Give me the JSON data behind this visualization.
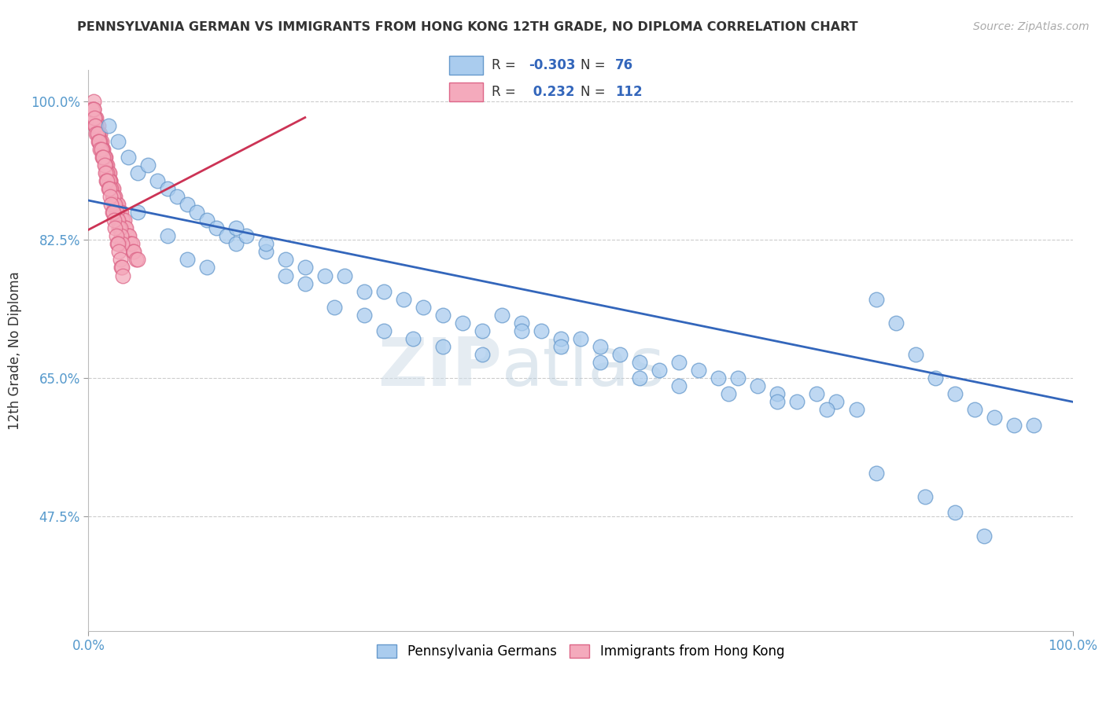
{
  "title": "PENNSYLVANIA GERMAN VS IMMIGRANTS FROM HONG KONG 12TH GRADE, NO DIPLOMA CORRELATION CHART",
  "source": "Source: ZipAtlas.com",
  "ylabel": "12th Grade, No Diploma",
  "blue_label": "Pennsylvania Germans",
  "pink_label": "Immigrants from Hong Kong",
  "blue_R": -0.303,
  "blue_N": 76,
  "pink_R": 0.232,
  "pink_N": 112,
  "blue_color": "#aaccee",
  "blue_edge": "#6699cc",
  "pink_color": "#f4aabc",
  "pink_edge": "#dd6688",
  "blue_line_color": "#3366bb",
  "pink_line_color": "#cc3355",
  "xlim": [
    0.0,
    1.0
  ],
  "ylim": [
    0.33,
    1.04
  ],
  "yticks": [
    0.475,
    0.65,
    0.825,
    1.0
  ],
  "ytick_labels": [
    "47.5%",
    "65.0%",
    "82.5%",
    "100.0%"
  ],
  "xtick_labels": [
    "0.0%",
    "100.0%"
  ],
  "xticks": [
    0.0,
    1.0
  ],
  "watermark": "ZIPatlas",
  "background_color": "#ffffff",
  "grid_color": "#cccccc",
  "blue_line_x0": 0.0,
  "blue_line_x1": 1.0,
  "blue_line_y0": 0.875,
  "blue_line_y1": 0.62,
  "pink_line_x0": -0.02,
  "pink_line_x1": 0.22,
  "pink_line_y0": 0.825,
  "pink_line_y1": 0.98,
  "blue_scatter_x": [
    0.02,
    0.03,
    0.04,
    0.05,
    0.06,
    0.07,
    0.08,
    0.09,
    0.1,
    0.11,
    0.12,
    0.13,
    0.14,
    0.15,
    0.16,
    0.18,
    0.2,
    0.22,
    0.24,
    0.26,
    0.28,
    0.3,
    0.32,
    0.34,
    0.36,
    0.38,
    0.4,
    0.42,
    0.44,
    0.46,
    0.48,
    0.5,
    0.52,
    0.54,
    0.56,
    0.58,
    0.6,
    0.62,
    0.64,
    0.66,
    0.68,
    0.7,
    0.72,
    0.74,
    0.76,
    0.78,
    0.8,
    0.82,
    0.84,
    0.86,
    0.88,
    0.9,
    0.92,
    0.94,
    0.96,
    0.05,
    0.08,
    0.1,
    0.12,
    0.15,
    0.18,
    0.2,
    0.22,
    0.25,
    0.28,
    0.3,
    0.33,
    0.36,
    0.4,
    0.44,
    0.48,
    0.52,
    0.56,
    0.6,
    0.65,
    0.7,
    0.75,
    0.8,
    0.85,
    0.88,
    0.91
  ],
  "blue_scatter_y": [
    0.97,
    0.95,
    0.93,
    0.91,
    0.92,
    0.9,
    0.89,
    0.88,
    0.87,
    0.86,
    0.85,
    0.84,
    0.83,
    0.82,
    0.83,
    0.81,
    0.8,
    0.79,
    0.78,
    0.78,
    0.76,
    0.76,
    0.75,
    0.74,
    0.73,
    0.72,
    0.71,
    0.73,
    0.72,
    0.71,
    0.7,
    0.7,
    0.69,
    0.68,
    0.67,
    0.66,
    0.67,
    0.66,
    0.65,
    0.65,
    0.64,
    0.63,
    0.62,
    0.63,
    0.62,
    0.61,
    0.75,
    0.72,
    0.68,
    0.65,
    0.63,
    0.61,
    0.6,
    0.59,
    0.59,
    0.86,
    0.83,
    0.8,
    0.79,
    0.84,
    0.82,
    0.78,
    0.77,
    0.74,
    0.73,
    0.71,
    0.7,
    0.69,
    0.68,
    0.71,
    0.69,
    0.67,
    0.65,
    0.64,
    0.63,
    0.62,
    0.61,
    0.53,
    0.5,
    0.48,
    0.45
  ],
  "pink_scatter_x": [
    0.005,
    0.005,
    0.007,
    0.007,
    0.008,
    0.009,
    0.01,
    0.01,
    0.01,
    0.012,
    0.012,
    0.013,
    0.013,
    0.015,
    0.015,
    0.016,
    0.017,
    0.018,
    0.019,
    0.02,
    0.02,
    0.021,
    0.022,
    0.022,
    0.023,
    0.024,
    0.025,
    0.026,
    0.027,
    0.028,
    0.029,
    0.03,
    0.031,
    0.032,
    0.033,
    0.034,
    0.035,
    0.036,
    0.037,
    0.038,
    0.039,
    0.04,
    0.041,
    0.042,
    0.043,
    0.044,
    0.045,
    0.046,
    0.048,
    0.05,
    0.005,
    0.006,
    0.007,
    0.008,
    0.009,
    0.01,
    0.011,
    0.012,
    0.013,
    0.014,
    0.015,
    0.016,
    0.017,
    0.018,
    0.019,
    0.02,
    0.021,
    0.022,
    0.023,
    0.024,
    0.025,
    0.026,
    0.027,
    0.028,
    0.029,
    0.03,
    0.031,
    0.032,
    0.033,
    0.034,
    0.004,
    0.005,
    0.006,
    0.007,
    0.008,
    0.009,
    0.01,
    0.011,
    0.012,
    0.013,
    0.014,
    0.015,
    0.016,
    0.017,
    0.018,
    0.019,
    0.02,
    0.021,
    0.022,
    0.023,
    0.024,
    0.025,
    0.026,
    0.027,
    0.028,
    0.029,
    0.03,
    0.031,
    0.032,
    0.033,
    0.034,
    0.035
  ],
  "pink_scatter_y": [
    1.0,
    0.99,
    0.98,
    0.97,
    0.98,
    0.97,
    0.96,
    0.97,
    0.96,
    0.96,
    0.95,
    0.95,
    0.94,
    0.94,
    0.93,
    0.93,
    0.93,
    0.92,
    0.92,
    0.91,
    0.91,
    0.91,
    0.9,
    0.9,
    0.89,
    0.89,
    0.89,
    0.88,
    0.88,
    0.87,
    0.87,
    0.87,
    0.86,
    0.86,
    0.86,
    0.85,
    0.85,
    0.85,
    0.84,
    0.84,
    0.83,
    0.83,
    0.83,
    0.82,
    0.82,
    0.82,
    0.81,
    0.81,
    0.8,
    0.8,
    0.98,
    0.98,
    0.97,
    0.97,
    0.96,
    0.96,
    0.95,
    0.95,
    0.94,
    0.94,
    0.93,
    0.93,
    0.92,
    0.91,
    0.91,
    0.9,
    0.9,
    0.89,
    0.89,
    0.88,
    0.88,
    0.87,
    0.87,
    0.86,
    0.85,
    0.85,
    0.84,
    0.84,
    0.83,
    0.82,
    0.99,
    0.99,
    0.98,
    0.97,
    0.96,
    0.96,
    0.95,
    0.95,
    0.94,
    0.94,
    0.93,
    0.93,
    0.92,
    0.91,
    0.9,
    0.9,
    0.89,
    0.89,
    0.88,
    0.87,
    0.86,
    0.86,
    0.85,
    0.84,
    0.83,
    0.82,
    0.82,
    0.81,
    0.8,
    0.79,
    0.79,
    0.78
  ]
}
